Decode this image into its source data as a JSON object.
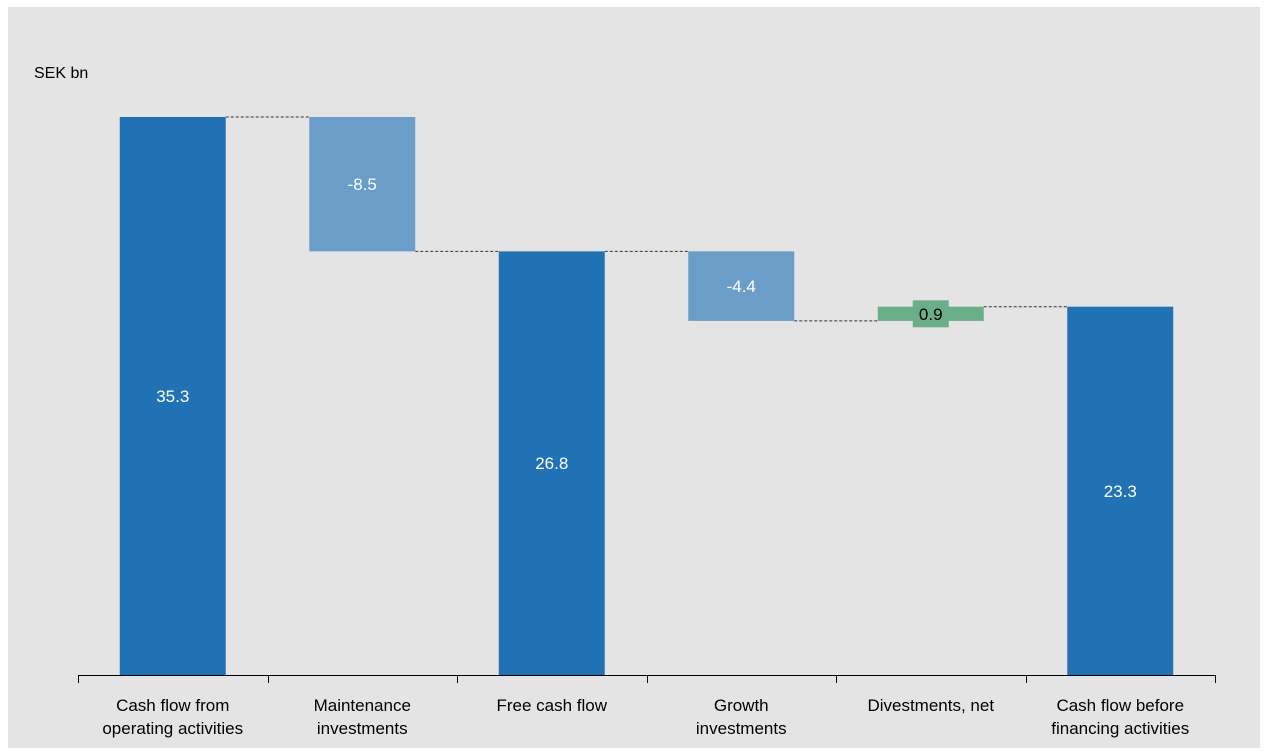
{
  "chart_data": {
    "type": "bar",
    "subtype": "waterfall",
    "unit_label": "SEK bn",
    "categories": [
      [
        "Cash flow from",
        "operating activities"
      ],
      [
        "Maintenance",
        "investments"
      ],
      [
        "Free cash flow"
      ],
      [
        "Growth",
        "investments"
      ],
      [
        "Divestments, net"
      ],
      [
        "Cash flow before",
        "financing activities"
      ]
    ],
    "steps": [
      {
        "kind": "total",
        "value": 35.3,
        "label": "35.3"
      },
      {
        "kind": "delta",
        "value": -8.5,
        "label": "-8.5"
      },
      {
        "kind": "total",
        "value": 26.8,
        "label": "26.8"
      },
      {
        "kind": "delta",
        "value": -4.4,
        "label": "-4.4"
      },
      {
        "kind": "delta",
        "value": 0.9,
        "label": "0.9"
      },
      {
        "kind": "total",
        "value": 23.3,
        "label": "23.3"
      }
    ],
    "ylim": [
      0,
      35.3
    ],
    "grid": false,
    "colors": {
      "background": "#e4e4e4",
      "total": "#2171b5",
      "negative": "#6a9ec9",
      "positive": "#6aae8a",
      "total_label": "#ffffff",
      "negative_label": "#ffffff",
      "positive_label": "#000000",
      "connector": "#333333",
      "axis": "#000000"
    }
  }
}
